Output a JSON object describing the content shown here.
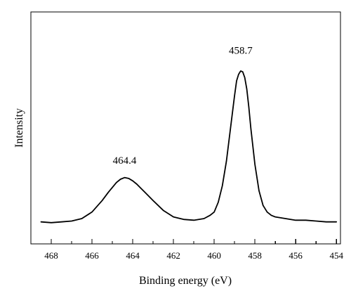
{
  "chart_data": {
    "type": "line",
    "xlabel": "Binding energy (eV)",
    "ylabel": "Intensity",
    "xlim": [
      469,
      453.8
    ],
    "ylim": [
      0,
      1.1
    ],
    "x_reversed": true,
    "grid": false,
    "x_ticks": [
      468,
      466,
      464,
      462,
      460,
      458,
      456,
      454
    ],
    "x_tick_labels": [
      "468",
      "466",
      "464",
      "462",
      "460",
      "458",
      "456",
      "454"
    ],
    "annotations": [
      {
        "text": "464.4",
        "x": 464.4,
        "y": 0.33
      },
      {
        "text": "458.7",
        "x": 458.7,
        "y": 1.0
      }
    ],
    "series": [
      {
        "x": [
          468.5,
          468.0,
          467.5,
          467.0,
          466.5,
          466.0,
          465.5,
          465.2,
          465.0,
          464.8,
          464.6,
          464.4,
          464.2,
          464.0,
          463.8,
          463.6,
          463.4,
          463.0,
          462.5,
          462.0,
          461.5,
          461.0,
          460.5,
          460.2,
          460.0,
          459.8,
          459.6,
          459.4,
          459.2,
          459.0,
          458.9,
          458.8,
          458.7,
          458.6,
          458.5,
          458.4,
          458.3,
          458.2,
          458.0,
          457.8,
          457.6,
          457.4,
          457.2,
          457.0,
          456.5,
          456.0,
          455.5,
          455.0,
          454.5,
          454.0
        ],
        "y": [
          0.01,
          0.005,
          0.01,
          0.015,
          0.03,
          0.07,
          0.14,
          0.19,
          0.22,
          0.25,
          0.27,
          0.28,
          0.275,
          0.26,
          0.24,
          0.215,
          0.19,
          0.14,
          0.08,
          0.04,
          0.025,
          0.02,
          0.03,
          0.05,
          0.07,
          0.13,
          0.23,
          0.38,
          0.58,
          0.78,
          0.87,
          0.91,
          0.93,
          0.925,
          0.89,
          0.82,
          0.71,
          0.58,
          0.36,
          0.2,
          0.11,
          0.07,
          0.05,
          0.04,
          0.03,
          0.02,
          0.02,
          0.015,
          0.01,
          0.01
        ]
      }
    ]
  }
}
